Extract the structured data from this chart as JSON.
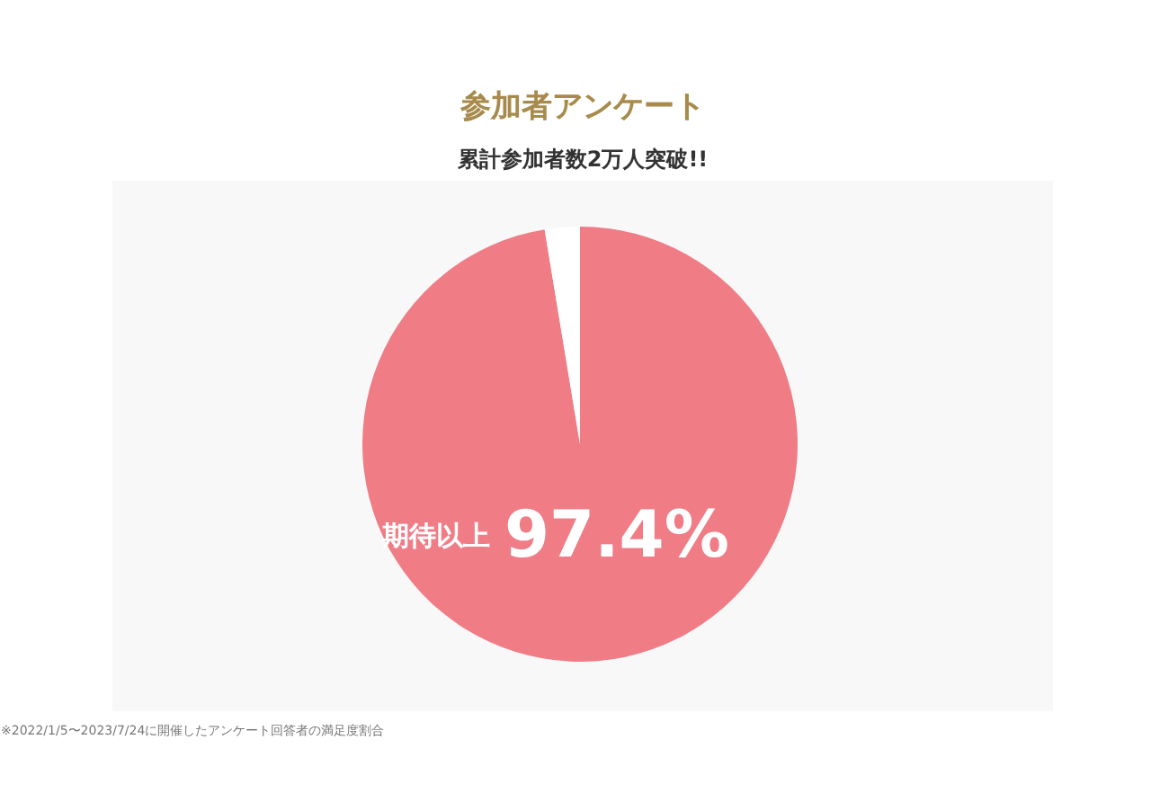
{
  "chart_data": {
    "type": "pie",
    "subtitle": "累計参加者数2万人突破!!",
    "title": "参加者アンケート",
    "categories": [
      "期待以上",
      null
    ],
    "values": [
      97.4,
      2.6
    ],
    "colors": [
      "#f07c86",
      "#ffffff"
    ],
    "value_labels": [
      "97.4%",
      null
    ],
    "annotations": [
      "※2022/1/5〜2023/7/24に開催したアンケート回答者の満足度割合"
    ]
  }
}
